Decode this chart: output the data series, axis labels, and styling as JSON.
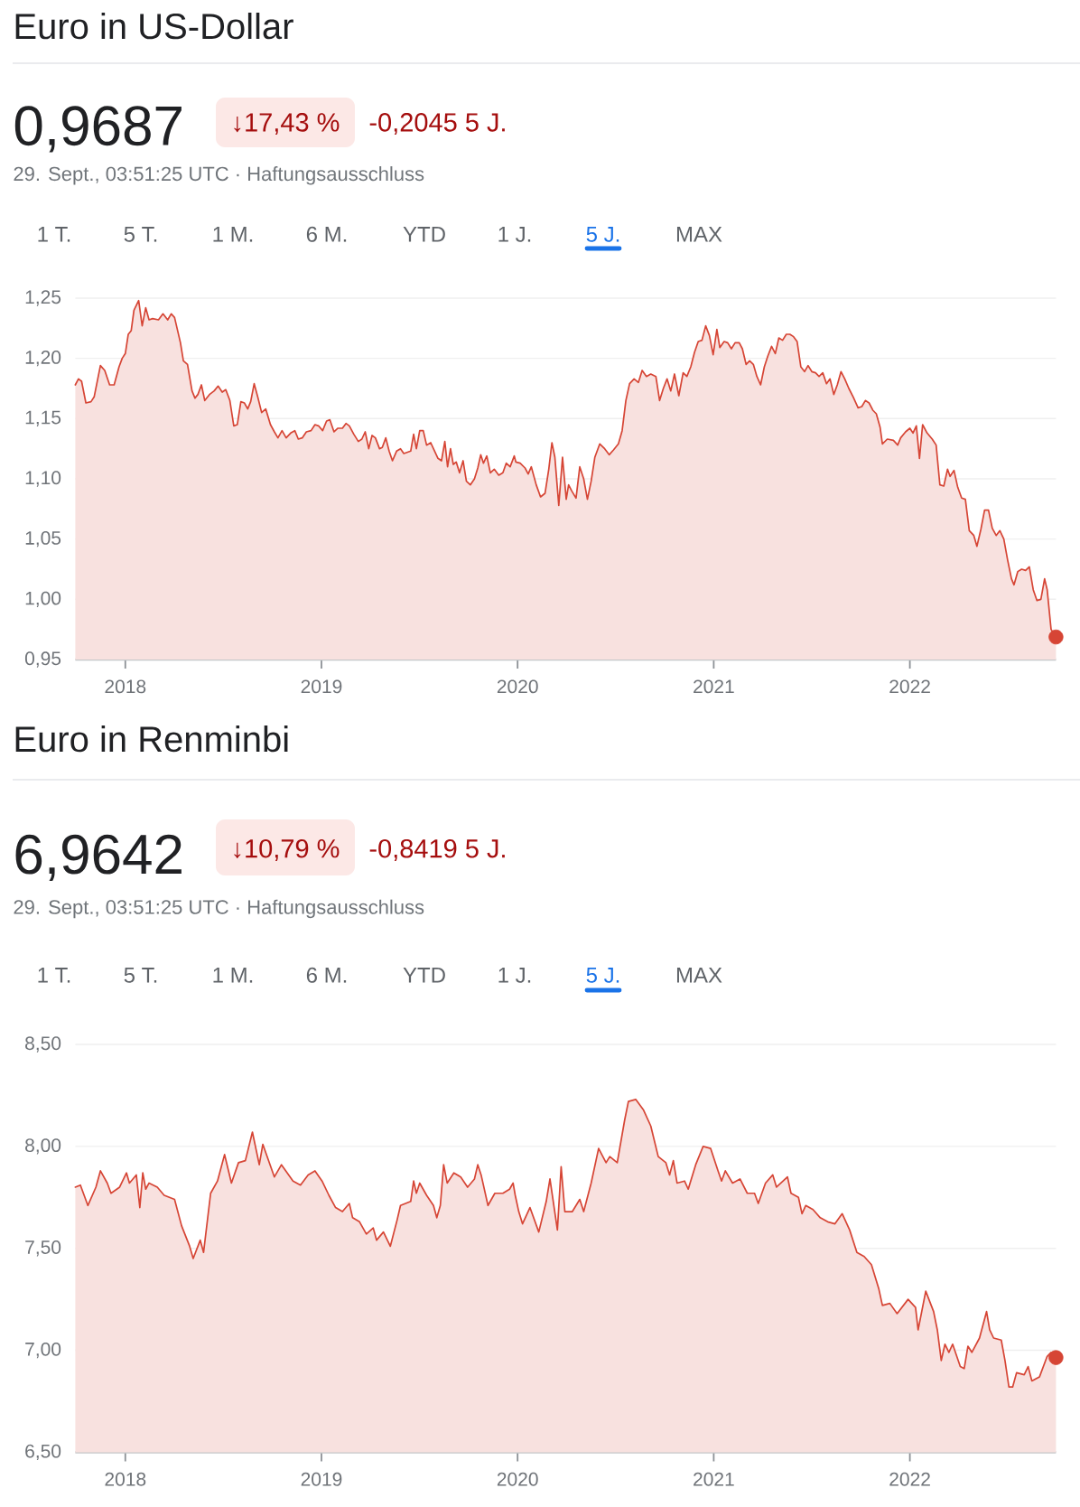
{
  "chart_data": [
    {
      "type": "area",
      "title": "Euro in US-Dollar",
      "subtitle": "0,9687",
      "annotations": [
        "↓17,43 %",
        "-0,2045 5 J.",
        "29. Sept., 03:51:25 UTC · Haftungsausschluss",
        "1 T.",
        "5 T.",
        "1 M.",
        "6 M.",
        "YTD",
        "1 J.",
        "5 J.",
        "MAX"
      ],
      "x": [
        2017.745,
        2017.761,
        2017.777,
        2017.799,
        2017.825,
        2017.841,
        2017.873,
        2017.895,
        2017.92,
        2017.943,
        2017.968,
        2017.984,
        2018.0,
        2018.015,
        2018.03,
        2018.044,
        2018.068,
        2018.086,
        2018.104,
        2018.121,
        2018.139,
        2018.169,
        2018.192,
        2018.216,
        2018.234,
        2018.251,
        2018.281,
        2018.296,
        2018.317,
        2018.34,
        2018.355,
        2018.37,
        2018.388,
        2018.405,
        2018.429,
        2018.453,
        2018.473,
        2018.494,
        2018.512,
        2018.533,
        2018.553,
        2018.571,
        2018.589,
        2018.607,
        2018.624,
        2018.639,
        2018.657,
        2018.675,
        2018.695,
        2018.716,
        2018.74,
        2018.76,
        2018.778,
        2018.799,
        2018.82,
        2018.843,
        2018.864,
        2018.882,
        2018.902,
        2018.923,
        2018.947,
        2018.967,
        2018.985,
        2019.006,
        2019.026,
        2019.043,
        2019.064,
        2019.084,
        2019.107,
        2019.125,
        2019.142,
        2019.165,
        2019.188,
        2019.206,
        2019.223,
        2019.241,
        2019.258,
        2019.275,
        2019.296,
        2019.31,
        2019.328,
        2019.345,
        2019.362,
        2019.383,
        2019.403,
        2019.42,
        2019.455,
        2019.47,
        2019.484,
        2019.501,
        2019.519,
        2019.536,
        2019.557,
        2019.577,
        2019.594,
        2019.612,
        2019.629,
        2019.643,
        2019.658,
        2019.672,
        2019.687,
        2019.704,
        2019.722,
        2019.739,
        2019.759,
        2019.78,
        2019.797,
        2019.812,
        2019.826,
        2019.843,
        2019.861,
        2019.881,
        2019.904,
        2019.925,
        2019.942,
        2019.962,
        2019.983,
        2019.991,
        2020.013,
        2020.038,
        2020.054,
        2020.07,
        2020.095,
        2020.117,
        2020.14,
        2020.159,
        2020.175,
        2020.19,
        2020.21,
        2020.229,
        2020.248,
        2020.26,
        2020.276,
        2020.298,
        2020.317,
        2020.337,
        2020.356,
        2020.375,
        2020.394,
        2020.419,
        2020.444,
        2020.467,
        2020.489,
        2020.514,
        2020.533,
        2020.552,
        2020.571,
        2020.594,
        2020.616,
        2020.635,
        2020.657,
        2020.679,
        2020.705,
        2020.724,
        2020.743,
        2020.762,
        2020.781,
        2020.8,
        2020.822,
        2020.844,
        2020.863,
        2020.883,
        2020.902,
        2020.921,
        2020.94,
        2020.959,
        2020.978,
        2020.997,
        2021.016,
        2021.031,
        2021.053,
        2021.071,
        2021.09,
        2021.109,
        2021.13,
        2021.146,
        2021.165,
        2021.183,
        2021.202,
        2021.22,
        2021.239,
        2021.258,
        2021.276,
        2021.295,
        2021.314,
        2021.332,
        2021.351,
        2021.37,
        2021.388,
        2021.407,
        2021.425,
        2021.444,
        2021.463,
        2021.481,
        2021.5,
        2021.519,
        2021.537,
        2021.556,
        2021.575,
        2021.593,
        2021.612,
        2021.63,
        2021.649,
        2021.668,
        2021.689,
        2021.711,
        2021.736,
        2021.755,
        2021.773,
        2021.792,
        2021.811,
        2021.829,
        2021.848,
        2021.86,
        2021.885,
        2021.916,
        2021.938,
        2021.953,
        2021.978,
        2022.0,
        2022.016,
        2022.033,
        2022.049,
        2022.065,
        2022.088,
        2022.114,
        2022.134,
        2022.153,
        2022.173,
        2022.192,
        2022.205,
        2022.225,
        2022.244,
        2022.264,
        2022.283,
        2022.303,
        2022.326,
        2022.342,
        2022.362,
        2022.381,
        2022.401,
        2022.42,
        2022.44,
        2022.459,
        2022.479,
        2022.498,
        2022.518,
        2022.531,
        2022.55,
        2022.57,
        2022.59,
        2022.609,
        2022.629,
        2022.648,
        2022.668,
        2022.687,
        2022.7,
        2022.72,
        2022.745
      ],
      "series": [
        {
          "color": "#d64535",
          "values": [
            1.178,
            1.183,
            1.181,
            1.163,
            1.164,
            1.168,
            1.194,
            1.19,
            1.178,
            1.178,
            1.193,
            1.2,
            1.204,
            1.22,
            1.223,
            1.24,
            1.248,
            1.227,
            1.242,
            1.232,
            1.233,
            1.232,
            1.237,
            1.232,
            1.237,
            1.234,
            1.213,
            1.198,
            1.195,
            1.173,
            1.167,
            1.17,
            1.178,
            1.165,
            1.17,
            1.173,
            1.177,
            1.172,
            1.174,
            1.165,
            1.144,
            1.145,
            1.164,
            1.163,
            1.158,
            1.164,
            1.179,
            1.168,
            1.155,
            1.158,
            1.145,
            1.139,
            1.134,
            1.14,
            1.134,
            1.138,
            1.14,
            1.133,
            1.134,
            1.139,
            1.14,
            1.145,
            1.144,
            1.14,
            1.148,
            1.149,
            1.139,
            1.142,
            1.142,
            1.146,
            1.144,
            1.137,
            1.131,
            1.133,
            1.139,
            1.125,
            1.136,
            1.134,
            1.125,
            1.126,
            1.134,
            1.123,
            1.115,
            1.123,
            1.125,
            1.121,
            1.123,
            1.137,
            1.125,
            1.14,
            1.14,
            1.128,
            1.13,
            1.123,
            1.117,
            1.115,
            1.131,
            1.11,
            1.125,
            1.112,
            1.114,
            1.105,
            1.115,
            1.098,
            1.095,
            1.1,
            1.109,
            1.12,
            1.113,
            1.119,
            1.105,
            1.108,
            1.103,
            1.105,
            1.113,
            1.11,
            1.119,
            1.114,
            1.113,
            1.109,
            1.104,
            1.11,
            1.095,
            1.085,
            1.088,
            1.108,
            1.13,
            1.118,
            1.078,
            1.118,
            1.083,
            1.095,
            1.09,
            1.084,
            1.11,
            1.1,
            1.083,
            1.098,
            1.118,
            1.129,
            1.125,
            1.12,
            1.124,
            1.129,
            1.14,
            1.165,
            1.179,
            1.183,
            1.18,
            1.19,
            1.185,
            1.187,
            1.185,
            1.165,
            1.175,
            1.183,
            1.173,
            1.187,
            1.169,
            1.188,
            1.185,
            1.193,
            1.205,
            1.214,
            1.215,
            1.227,
            1.219,
            1.203,
            1.224,
            1.209,
            1.214,
            1.213,
            1.208,
            1.213,
            1.213,
            1.208,
            1.195,
            1.198,
            1.195,
            1.185,
            1.178,
            1.193,
            1.202,
            1.21,
            1.204,
            1.217,
            1.215,
            1.22,
            1.22,
            1.218,
            1.214,
            1.193,
            1.189,
            1.194,
            1.189,
            1.188,
            1.185,
            1.188,
            1.179,
            1.183,
            1.17,
            1.178,
            1.189,
            1.183,
            1.175,
            1.168,
            1.159,
            1.16,
            1.165,
            1.163,
            1.157,
            1.154,
            1.143,
            1.129,
            1.133,
            1.132,
            1.128,
            1.134,
            1.139,
            1.142,
            1.138,
            1.144,
            1.117,
            1.145,
            1.138,
            1.133,
            1.128,
            1.095,
            1.094,
            1.108,
            1.102,
            1.107,
            1.093,
            1.084,
            1.083,
            1.057,
            1.053,
            1.044,
            1.058,
            1.074,
            1.074,
            1.059,
            1.053,
            1.057,
            1.05,
            1.033,
            1.017,
            1.012,
            1.023,
            1.025,
            1.024,
            1.027,
            1.008,
            0.999,
            1.0,
            1.017,
            1.008,
            0.975,
            0.9687
          ]
        },
        {
          "type": "scatter",
          "x": [
            2022.745
          ],
          "values": [
            0.9687
          ],
          "color": "#d64535",
          "marker": "circle"
        }
      ],
      "xlim": [
        2017.745,
        2022.745
      ],
      "xticks": [
        2018,
        2019,
        2020,
        2021,
        2022
      ],
      "ylim": [
        0.95,
        1.25
      ],
      "yticks": [
        {
          "value": 0.95,
          "label": "0,95"
        },
        {
          "value": 1.0,
          "label": "1,00"
        },
        {
          "value": 1.05,
          "label": "1,05"
        },
        {
          "value": 1.1,
          "label": "1,10"
        },
        {
          "value": 1.15,
          "label": "1,15"
        },
        {
          "value": 1.2,
          "label": "1,20"
        },
        {
          "value": 1.25,
          "label": "1,25"
        }
      ],
      "grid": "y"
    },
    {
      "type": "area",
      "title": "Euro in Renminbi",
      "subtitle": "6,9642",
      "annotations": [
        "↓10,79 %",
        "-0,8419 5 J.",
        "29. Sept., 03:51:25 UTC · Haftungsausschluss",
        "1 T.",
        "5 T.",
        "1 M.",
        "6 M.",
        "YTD",
        "1 J.",
        "5 J.",
        "MAX"
      ],
      "x": [
        2017.745,
        2017.771,
        2017.809,
        2017.85,
        2017.873,
        2017.908,
        2017.927,
        2017.971,
        2018.006,
        2018.021,
        2018.056,
        2018.074,
        2018.089,
        2018.104,
        2018.121,
        2018.163,
        2018.198,
        2018.251,
        2018.287,
        2018.328,
        2018.346,
        2018.382,
        2018.399,
        2018.435,
        2018.47,
        2018.506,
        2018.541,
        2018.577,
        2018.612,
        2018.648,
        2018.683,
        2018.701,
        2018.76,
        2018.796,
        2018.855,
        2018.893,
        2018.932,
        2018.967,
        2019.003,
        2019.038,
        2019.072,
        2019.107,
        2019.142,
        2019.159,
        2019.194,
        2019.229,
        2019.264,
        2019.281,
        2019.316,
        2019.351,
        2019.386,
        2019.403,
        2019.455,
        2019.47,
        2019.484,
        2019.501,
        2019.536,
        2019.571,
        2019.588,
        2019.606,
        2019.623,
        2019.641,
        2019.675,
        2019.71,
        2019.745,
        2019.78,
        2019.797,
        2019.814,
        2019.849,
        2019.884,
        2019.925,
        2019.959,
        2019.977,
        2019.988,
        2020.006,
        2020.025,
        2020.063,
        2020.108,
        2020.146,
        2020.165,
        2020.203,
        2020.222,
        2020.241,
        2020.279,
        2020.317,
        2020.337,
        2020.375,
        2020.413,
        2020.451,
        2020.47,
        2020.508,
        2020.546,
        2020.565,
        2020.603,
        2020.641,
        2020.679,
        2020.717,
        2020.756,
        2020.775,
        2020.794,
        2020.813,
        2020.851,
        2020.87,
        2020.908,
        2020.946,
        2020.984,
        2021.022,
        2021.04,
        2021.059,
        2021.096,
        2021.134,
        2021.171,
        2021.208,
        2021.227,
        2021.264,
        2021.301,
        2021.32,
        2021.376,
        2021.394,
        2021.432,
        2021.45,
        2021.469,
        2021.506,
        2021.543,
        2021.581,
        2021.618,
        2021.655,
        2021.693,
        2021.73,
        2021.767,
        2021.804,
        2021.842,
        2021.86,
        2021.898,
        2021.935,
        2021.991,
        2022.029,
        2022.042,
        2022.081,
        2022.121,
        2022.14,
        2022.16,
        2022.179,
        2022.199,
        2022.218,
        2022.257,
        2022.277,
        2022.296,
        2022.316,
        2022.355,
        2022.391,
        2022.407,
        2022.427,
        2022.466,
        2022.485,
        2022.505,
        2022.524,
        2022.544,
        2022.583,
        2022.603,
        2022.622,
        2022.661,
        2022.7,
        2022.72,
        2022.745
      ],
      "series": [
        {
          "color": "#d64535",
          "values": [
            7.8,
            7.81,
            7.71,
            7.8,
            7.88,
            7.82,
            7.77,
            7.8,
            7.87,
            7.82,
            7.86,
            7.7,
            7.87,
            7.79,
            7.82,
            7.8,
            7.76,
            7.74,
            7.61,
            7.51,
            7.45,
            7.54,
            7.48,
            7.77,
            7.83,
            7.96,
            7.82,
            7.92,
            7.93,
            8.07,
            7.91,
            8.01,
            7.85,
            7.91,
            7.83,
            7.81,
            7.86,
            7.88,
            7.83,
            7.76,
            7.7,
            7.68,
            7.72,
            7.65,
            7.63,
            7.57,
            7.6,
            7.54,
            7.58,
            7.51,
            7.64,
            7.71,
            7.73,
            7.83,
            7.77,
            7.82,
            7.76,
            7.71,
            7.65,
            7.71,
            7.91,
            7.82,
            7.87,
            7.85,
            7.8,
            7.84,
            7.91,
            7.86,
            7.71,
            7.77,
            7.77,
            7.79,
            7.82,
            7.76,
            7.68,
            7.62,
            7.7,
            7.58,
            7.73,
            7.84,
            7.59,
            7.9,
            7.68,
            7.68,
            7.74,
            7.68,
            7.82,
            7.99,
            7.92,
            7.95,
            7.92,
            8.13,
            8.22,
            8.23,
            8.18,
            8.1,
            7.95,
            7.92,
            7.86,
            7.93,
            7.82,
            7.83,
            7.79,
            7.91,
            8.0,
            7.99,
            7.88,
            7.83,
            7.88,
            7.82,
            7.84,
            7.77,
            7.77,
            7.72,
            7.82,
            7.86,
            7.8,
            7.85,
            7.77,
            7.75,
            7.67,
            7.71,
            7.69,
            7.65,
            7.63,
            7.62,
            7.67,
            7.59,
            7.48,
            7.46,
            7.42,
            7.3,
            7.22,
            7.23,
            7.18,
            7.25,
            7.21,
            7.1,
            7.29,
            7.19,
            7.1,
            6.95,
            7.03,
            6.99,
            7.03,
            6.92,
            6.91,
            7.02,
            6.99,
            7.06,
            7.19,
            7.1,
            7.06,
            7.05,
            6.95,
            6.82,
            6.82,
            6.89,
            6.88,
            6.92,
            6.85,
            6.87,
            6.97,
            6.99,
            6.9642
          ]
        },
        {
          "type": "scatter",
          "x": [
            2022.745
          ],
          "values": [
            6.9642
          ],
          "color": "#d64535",
          "marker": "circle"
        }
      ],
      "xlim": [
        2017.745,
        2022.745
      ],
      "xticks": [
        2018,
        2019,
        2020,
        2021,
        2022
      ],
      "ylim": [
        6.5,
        8.5
      ],
      "yticks": [
        {
          "value": 6.5,
          "label": "6,50"
        },
        {
          "value": 7.0,
          "label": "7,00"
        },
        {
          "value": 7.5,
          "label": "7,50"
        },
        {
          "value": 8.0,
          "label": "8,00"
        },
        {
          "value": 8.5,
          "label": "8,50"
        }
      ],
      "grid": "y"
    }
  ]
}
